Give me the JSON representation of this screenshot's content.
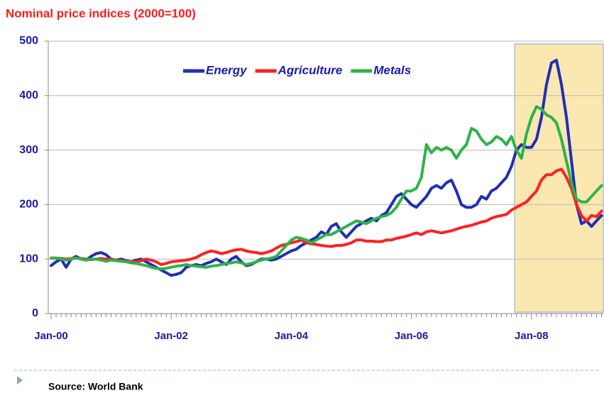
{
  "chart_data": {
    "type": "line",
    "title": "Nominal price indices (2000=100)",
    "source": "Source: World Bank",
    "categories": [
      "Jan-00",
      null,
      null,
      null,
      null,
      null,
      null,
      null,
      null,
      null,
      null,
      null,
      null,
      null,
      null,
      null,
      null,
      null,
      null,
      null,
      null,
      null,
      null,
      null,
      "Jan-02",
      null,
      null,
      null,
      null,
      null,
      null,
      null,
      null,
      null,
      null,
      null,
      null,
      null,
      null,
      null,
      null,
      null,
      null,
      null,
      null,
      null,
      null,
      null,
      "Jan-04",
      null,
      null,
      null,
      null,
      null,
      null,
      null,
      null,
      null,
      null,
      null,
      null,
      null,
      null,
      null,
      null,
      null,
      null,
      null,
      null,
      null,
      null,
      null,
      "Jan-06",
      null,
      null,
      null,
      null,
      null,
      null,
      null,
      null,
      null,
      null,
      null,
      null,
      null,
      null,
      null,
      null,
      null,
      null,
      null,
      null,
      null,
      null,
      null,
      "Jan-08",
      null,
      null,
      null,
      null,
      null,
      null,
      null,
      null,
      null,
      null,
      null,
      null,
      null,
      null
    ],
    "series": [
      {
        "name": "Energy",
        "color": "#1f2fb5",
        "values": [
          88,
          95,
          100,
          85,
          100,
          105,
          100,
          98,
          105,
          110,
          112,
          108,
          100,
          98,
          100,
          97,
          95,
          98,
          100,
          95,
          90,
          85,
          80,
          75,
          70,
          72,
          75,
          85,
          88,
          90,
          88,
          92,
          95,
          100,
          95,
          90,
          100,
          105,
          95,
          88,
          90,
          95,
          100,
          100,
          98,
          100,
          105,
          110,
          115,
          118,
          125,
          130,
          135,
          140,
          150,
          145,
          160,
          165,
          150,
          140,
          150,
          160,
          165,
          170,
          175,
          170,
          180,
          185,
          200,
          215,
          220,
          210,
          200,
          195,
          205,
          215,
          230,
          235,
          230,
          240,
          245,
          225,
          200,
          195,
          195,
          200,
          215,
          210,
          225,
          230,
          240,
          250,
          270,
          300,
          310,
          305,
          305,
          320,
          360,
          420,
          460,
          465,
          420,
          360,
          280,
          200,
          165,
          170,
          160,
          170,
          180
        ]
      },
      {
        "name": "Agriculture",
        "color": "#ff2020",
        "values": [
          102,
          102,
          101,
          100,
          101,
          102,
          101,
          100,
          99,
          100,
          101,
          100,
          100,
          98,
          97,
          96,
          95,
          95,
          97,
          100,
          98,
          95,
          90,
          92,
          95,
          96,
          97,
          98,
          100,
          103,
          108,
          112,
          115,
          113,
          110,
          112,
          115,
          117,
          118,
          115,
          113,
          112,
          110,
          112,
          115,
          120,
          125,
          127,
          130,
          132,
          135,
          130,
          128,
          127,
          125,
          124,
          123,
          125,
          125,
          127,
          130,
          135,
          135,
          133,
          133,
          132,
          132,
          135,
          135,
          138,
          140,
          142,
          145,
          148,
          145,
          150,
          152,
          150,
          148,
          150,
          152,
          155,
          158,
          160,
          162,
          165,
          168,
          170,
          175,
          178,
          180,
          182,
          190,
          195,
          200,
          205,
          215,
          225,
          245,
          255,
          255,
          262,
          265,
          250,
          230,
          200,
          180,
          170,
          180,
          178,
          188
        ]
      },
      {
        "name": "Metals",
        "color": "#2db34a",
        "values": [
          102,
          102,
          100,
          98,
          100,
          102,
          100,
          98,
          100,
          100,
          98,
          96,
          98,
          97,
          96,
          95,
          93,
          92,
          90,
          88,
          85,
          83,
          82,
          83,
          85,
          87,
          88,
          90,
          88,
          87,
          86,
          85,
          87,
          88,
          90,
          92,
          93,
          95,
          93,
          90,
          92,
          95,
          98,
          100,
          102,
          105,
          115,
          125,
          135,
          140,
          138,
          135,
          130,
          135,
          140,
          145,
          145,
          150,
          155,
          160,
          165,
          170,
          168,
          165,
          170,
          175,
          178,
          180,
          185,
          195,
          210,
          225,
          225,
          230,
          250,
          310,
          295,
          305,
          300,
          305,
          300,
          285,
          300,
          310,
          340,
          335,
          320,
          310,
          315,
          325,
          320,
          310,
          325,
          300,
          285,
          330,
          360,
          380,
          375,
          365,
          360,
          350,
          320,
          280,
          240,
          210,
          205,
          205,
          215,
          225,
          235
        ]
      }
    ],
    "ylim": [
      0,
      500
    ],
    "yticks": [
      0,
      100,
      200,
      300,
      400,
      500
    ],
    "grid": true,
    "legend": "top"
  }
}
